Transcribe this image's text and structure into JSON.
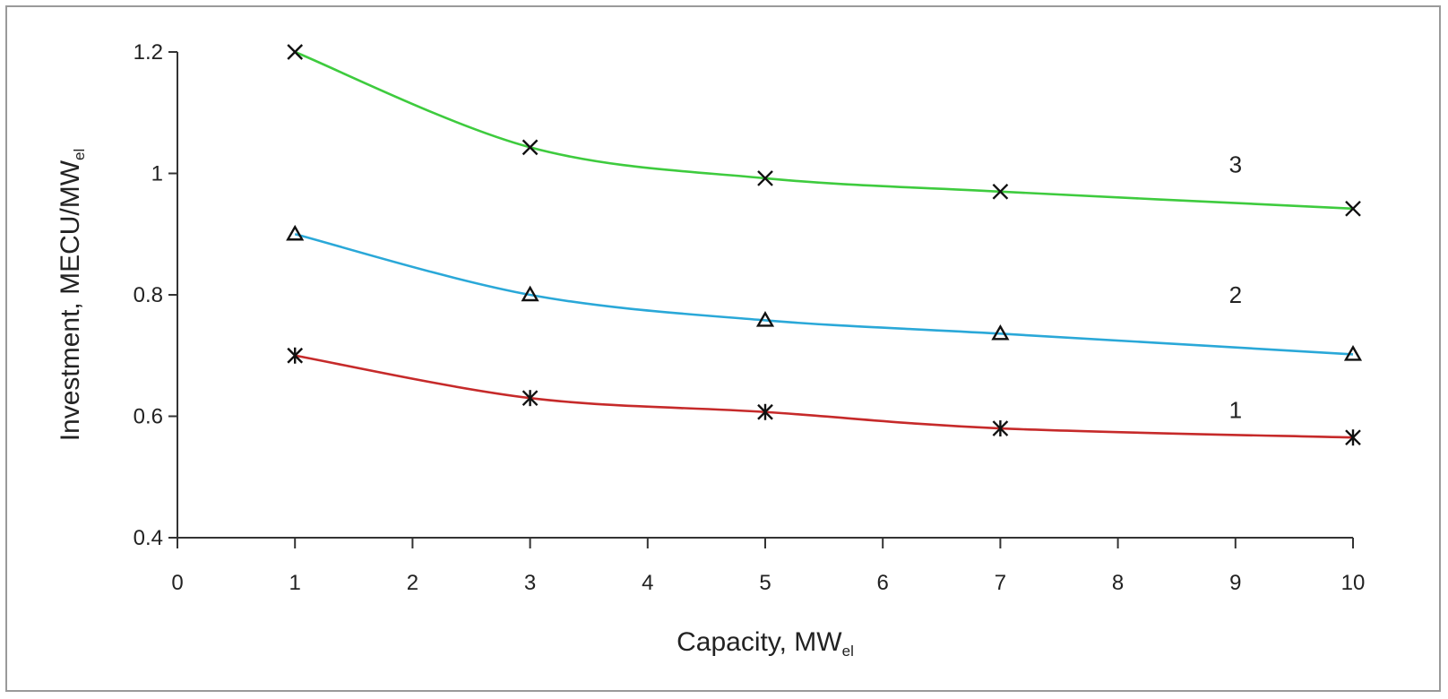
{
  "chart_data": {
    "type": "line",
    "xlabel": "Capacity, MW",
    "xlabel_sub": "el",
    "ylabel": "Investment, MECU/MW",
    "ylabel_sub": "el",
    "xlim": [
      0,
      10
    ],
    "ylim": [
      0.4,
      1.2
    ],
    "x_ticks": [
      0,
      1,
      2,
      3,
      4,
      5,
      6,
      7,
      8,
      9,
      10
    ],
    "x_tick_labels": [
      "0",
      "1",
      "2",
      "3",
      "4",
      "5",
      "6",
      "7",
      "8",
      "9",
      "10"
    ],
    "y_ticks": [
      0.4,
      0.6,
      0.8,
      1.0,
      1.2
    ],
    "y_tick_labels": [
      "0.4",
      "0.6",
      "0.8",
      "1",
      "1.2"
    ],
    "grid": false,
    "series": [
      {
        "label": "1",
        "color": "#c62a2a",
        "marker": "asterisk",
        "x": [
          1,
          3,
          5,
          7,
          10
        ],
        "y": [
          0.7,
          0.63,
          0.607,
          0.58,
          0.565
        ],
        "label_pos": [
          9.0,
          0.61
        ]
      },
      {
        "label": "2",
        "color": "#2aa8d8",
        "marker": "triangle",
        "x": [
          1,
          3,
          5,
          7,
          10
        ],
        "y": [
          0.9,
          0.8,
          0.758,
          0.736,
          0.702
        ],
        "label_pos": [
          9.0,
          0.8
        ]
      },
      {
        "label": "3",
        "color": "#3ecb3e",
        "marker": "x",
        "x": [
          1,
          3,
          5,
          7,
          10
        ],
        "y": [
          1.2,
          1.043,
          0.992,
          0.97,
          0.942
        ],
        "label_pos": [
          9.0,
          1.015
        ]
      }
    ]
  }
}
